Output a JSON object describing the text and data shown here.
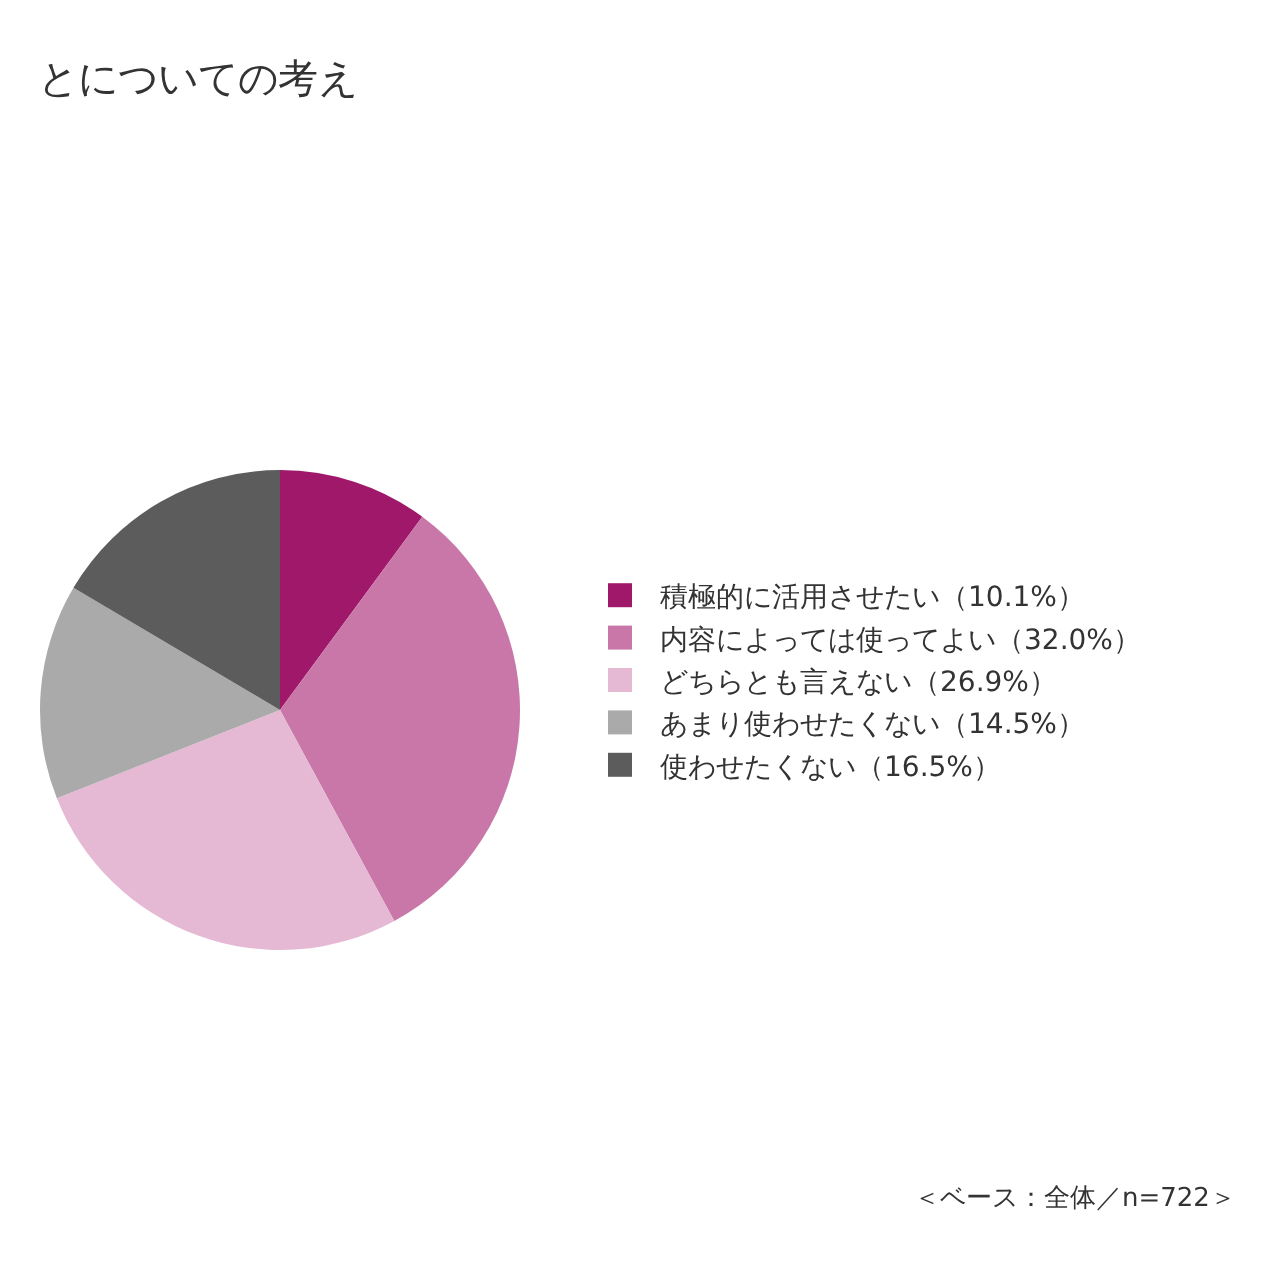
{
  "chart_data": {
    "type": "pie",
    "title": "とについての考え",
    "categories": [
      "積極的に活用させたい（10.1%）",
      "内容によっては使ってよい（32.0%）",
      "どちらとも言えない（26.9%）",
      "あまり使わせたくない（14.5%）",
      "使わせたくない（16.5%）"
    ],
    "values": [
      10.1,
      32.0,
      26.9,
      14.5,
      16.5
    ],
    "colors": [
      "#a0186a",
      "#c977a8",
      "#e5b9d4",
      "#aaaaaa",
      "#5c5c5c"
    ],
    "legend": "right",
    "annotations": [
      "＜ベース：全体／n=722＞"
    ]
  }
}
